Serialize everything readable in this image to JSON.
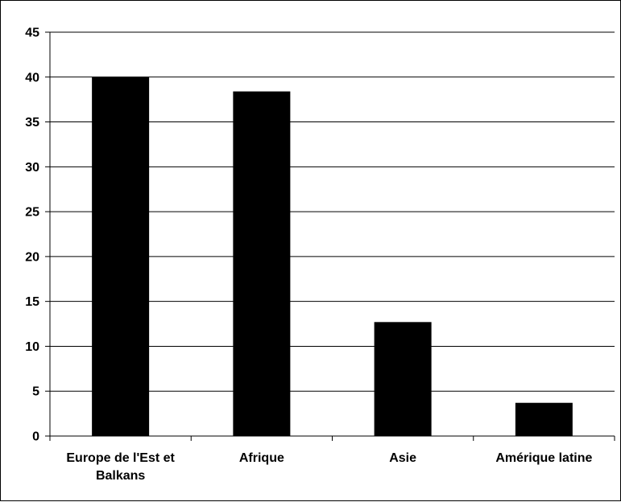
{
  "chart_data": {
    "type": "bar",
    "title": "",
    "xlabel": "",
    "ylabel": "",
    "categories": [
      [
        "Europe de l'Est et",
        "Balkans"
      ],
      [
        "Afrique"
      ],
      [
        "Asie"
      ],
      [
        "Amérique latine"
      ]
    ],
    "values": [
      40,
      38.4,
      12.7,
      3.7
    ],
    "ylim": [
      0,
      45
    ],
    "yticks": [
      0,
      5,
      10,
      15,
      20,
      25,
      30,
      35,
      40,
      45
    ],
    "grid": true,
    "legend": "none",
    "colors": {
      "bar": "#000000",
      "grid": "#000000",
      "background": "#ffffff"
    }
  }
}
